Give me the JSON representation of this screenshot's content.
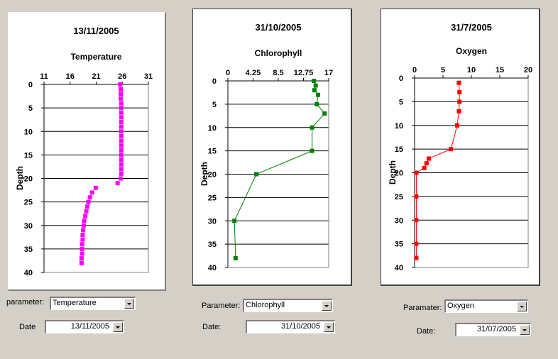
{
  "chart_data": [
    {
      "type": "scatter",
      "title": "13/11/2005",
      "subtitle": "Temperature",
      "ylabel": "Depth",
      "xlim": [
        11,
        31
      ],
      "ylim": [
        0,
        40
      ],
      "x_ticks": [
        11,
        16,
        21,
        26,
        31
      ],
      "y_ticks": [
        0,
        5,
        10,
        15,
        20,
        25,
        30,
        35,
        40
      ],
      "x_axis_position": "top",
      "y_axis_inverted": true,
      "grid": "horizontal",
      "color": "#ff00ff",
      "marker": "square",
      "series": [
        {
          "x": [
            25.6,
            25.7,
            25.7,
            25.7,
            25.8,
            25.8,
            25.8,
            25.8,
            25.8,
            25.8,
            25.8,
            25.8,
            25.8,
            25.8,
            25.8,
            25.8,
            25.8,
            25.8,
            25.8,
            25.8,
            25.7,
            25.1,
            20.9,
            20.2,
            19.8,
            19.5,
            19.3,
            19.1,
            18.9,
            18.7,
            18.6,
            18.5,
            18.4,
            18.4,
            18.3,
            18.3,
            18.3,
            18.2,
            18.2
          ],
          "y": [
            0,
            1,
            2,
            3,
            4,
            5,
            6,
            7,
            8,
            9,
            10,
            11,
            12,
            13,
            14,
            15,
            16,
            17,
            18,
            19,
            20,
            21,
            22,
            23,
            24,
            25,
            26,
            27,
            28,
            29,
            30,
            31,
            32,
            33,
            34,
            35,
            36,
            37,
            38
          ]
        }
      ]
    },
    {
      "type": "line",
      "title": "31/10/2005",
      "subtitle": "Chlorophyll",
      "ylabel": "Depth",
      "xlim": [
        0,
        17
      ],
      "ylim": [
        0,
        40
      ],
      "x_ticks": [
        "0",
        "4.25",
        "8.5",
        "12.75",
        "17"
      ],
      "y_ticks": [
        0,
        5,
        10,
        15,
        20,
        25,
        30,
        35,
        40
      ],
      "x_axis_position": "top",
      "y_axis_inverted": true,
      "grid": "horizontal",
      "color": "#008000",
      "marker": "square",
      "series": [
        {
          "x": [
            14.5,
            14.8,
            14.6,
            15.2,
            15.0,
            16.3,
            14.2,
            14.2,
            4.8,
            1.1,
            1.3
          ],
          "y": [
            0,
            1,
            2,
            3,
            5,
            7,
            10,
            15,
            20,
            30,
            38
          ]
        }
      ]
    },
    {
      "type": "line",
      "title": "31/7/2005",
      "subtitle": "Oxygen",
      "ylabel": "Depth",
      "xlim": [
        0,
        20
      ],
      "ylim": [
        0,
        40
      ],
      "x_ticks": [
        0,
        5,
        10,
        15,
        20
      ],
      "y_ticks": [
        0,
        5,
        10,
        15,
        20,
        25,
        30,
        35,
        40
      ],
      "x_axis_position": "top",
      "y_axis_inverted": true,
      "grid": "horizontal",
      "color": "#ff0000",
      "marker": "square",
      "series": [
        {
          "x": [
            7.8,
            7.9,
            7.9,
            7.8,
            7.5,
            6.4,
            2.5,
            2.1,
            1.7,
            0.3,
            0.3,
            0.3,
            0.3,
            0.3
          ],
          "y": [
            1,
            3,
            5,
            7,
            10,
            15,
            17,
            18,
            19,
            20,
            25,
            30,
            35,
            38
          ]
        }
      ]
    }
  ],
  "controls": {
    "panel1": {
      "param_label": "parameter:",
      "param_value": "Temperature",
      "date_label": "Date",
      "date_value": "13/11/2005"
    },
    "panel2": {
      "param_label": "Parameter:",
      "param_value": "Chlorophyll",
      "date_label": "Date:",
      "date_value": "31/10/2005"
    },
    "panel3": {
      "param_label": "Paramater:",
      "param_value": "Oxygen",
      "date_label": "Date:",
      "date_value": "31/07/2005"
    }
  }
}
